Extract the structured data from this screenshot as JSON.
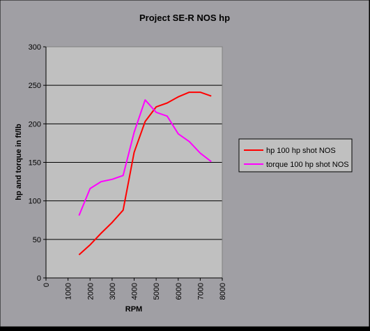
{
  "colors": {
    "chart_area": "#A09FA4",
    "plot_area": "#C0C0C0",
    "gridline": "#000000",
    "hp_series": "#FF0000",
    "torque_series": "#FF00FF"
  },
  "chart_data": {
    "type": "line",
    "title": "Project SE-R NOS hp",
    "xlabel": "RPM",
    "ylabel": "hp and torque in ft/lb",
    "xlim": [
      0,
      8000
    ],
    "ylim": [
      0,
      300
    ],
    "x_ticks": [
      0,
      1000,
      2000,
      3000,
      4000,
      5000,
      6000,
      7000,
      8000
    ],
    "y_ticks": [
      0,
      50,
      100,
      150,
      200,
      250,
      300
    ],
    "grid": "horizontal major gridlines",
    "legend_position": "right",
    "series": [
      {
        "name": "hp 100 hp shot NOS",
        "color": "#FF0000",
        "x": [
          1500,
          2000,
          2500,
          3000,
          3500,
          4000,
          4500,
          5000,
          5500,
          6000,
          6500,
          7000,
          7500
        ],
        "y": [
          30,
          43,
          58,
          72,
          88,
          163,
          203,
          222,
          227,
          235,
          241,
          241,
          236
        ]
      },
      {
        "name": "torque 100 hp shot NOS",
        "color": "#FF00FF",
        "x": [
          1500,
          2000,
          2500,
          3000,
          3500,
          4000,
          4500,
          5000,
          5500,
          6000,
          6500,
          7000,
          7500
        ],
        "y": [
          81,
          116,
          125,
          128,
          133,
          189,
          231,
          215,
          210,
          187,
          177,
          162,
          151
        ]
      }
    ]
  }
}
